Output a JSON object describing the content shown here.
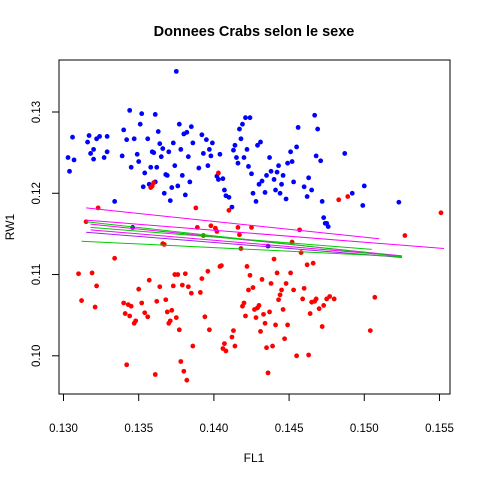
{
  "chart_data": {
    "type": "scatter",
    "title": "Donnees Crabs selon le sexe",
    "xlabel": "FL1",
    "ylabel": "RW1",
    "xlim": [
      0.1297,
      0.1557
    ],
    "ylim": [
      0.0953,
      0.1364
    ],
    "xticks": [
      0.13,
      0.135,
      0.14,
      0.145,
      0.15,
      0.155
    ],
    "xtick_labels": [
      "0.130",
      "0.135",
      "0.140",
      "0.145",
      "0.150",
      "0.155"
    ],
    "yticks": [
      0.1,
      0.11,
      0.12,
      0.13
    ],
    "ytick_labels": [
      "0.10",
      "0.11",
      "0.12",
      "0.13"
    ],
    "grid": false,
    "legend": "none",
    "colors": {
      "blue": "#0000ff",
      "red": "#ff0000",
      "green": "#00cc00",
      "magenta": "#ff00ff",
      "purple": "#a020f0"
    },
    "series": [
      {
        "color": "#0000ff",
        "points": [
          [
            0.1303,
            0.1244
          ],
          [
            0.1304,
            0.1227
          ],
          [
            0.1306,
            0.1269
          ],
          [
            0.1307,
            0.1241
          ],
          [
            0.1316,
            0.1263
          ],
          [
            0.1317,
            0.1271
          ],
          [
            0.1318,
            0.1249
          ],
          [
            0.132,
            0.1242
          ],
          [
            0.132,
            0.1254
          ],
          [
            0.1322,
            0.1267
          ],
          [
            0.1324,
            0.127
          ],
          [
            0.1327,
            0.1244
          ],
          [
            0.1329,
            0.127
          ],
          [
            0.1329,
            0.1251
          ],
          [
            0.1334,
            0.119
          ],
          [
            0.1339,
            0.1246
          ],
          [
            0.134,
            0.1278
          ],
          [
            0.1342,
            0.1266
          ],
          [
            0.1344,
            0.1302
          ],
          [
            0.1345,
            0.1232
          ],
          [
            0.1346,
            0.1158
          ],
          [
            0.1347,
            0.1267
          ],
          [
            0.1349,
            0.1248
          ],
          [
            0.135,
            0.1239
          ],
          [
            0.1351,
            0.1285
          ],
          [
            0.1352,
            0.1298
          ],
          [
            0.1353,
            0.1208
          ],
          [
            0.1354,
            0.1225
          ],
          [
            0.1356,
            0.1267
          ],
          [
            0.1357,
            0.1211
          ],
          [
            0.1358,
            0.1232
          ],
          [
            0.1359,
            0.1251
          ],
          [
            0.136,
            0.125
          ],
          [
            0.1361,
            0.1214
          ],
          [
            0.1361,
            0.1297
          ],
          [
            0.1362,
            0.1232
          ],
          [
            0.1363,
            0.1276
          ],
          [
            0.1364,
            0.1261
          ],
          [
            0.1365,
            0.1245
          ],
          [
            0.1366,
            0.1255
          ],
          [
            0.1367,
            0.12
          ],
          [
            0.1368,
            0.1223
          ],
          [
            0.1369,
            0.1222
          ],
          [
            0.137,
            0.1251
          ],
          [
            0.1371,
            0.1191
          ],
          [
            0.1372,
            0.1207
          ],
          [
            0.1373,
            0.1262
          ],
          [
            0.1374,
            0.1234
          ],
          [
            0.1375,
            0.135
          ],
          [
            0.1376,
            0.1209
          ],
          [
            0.1377,
            0.1285
          ],
          [
            0.1378,
            0.1254
          ],
          [
            0.1379,
            0.1222
          ],
          [
            0.138,
            0.1273
          ],
          [
            0.1381,
            0.1198
          ],
          [
            0.1382,
            0.1275
          ],
          [
            0.1383,
            0.1245
          ],
          [
            0.1384,
            0.1214
          ],
          [
            0.1385,
            0.1282
          ],
          [
            0.1386,
            0.1262
          ],
          [
            0.139,
            0.1231
          ],
          [
            0.1392,
            0.1272
          ],
          [
            0.1393,
            0.1249
          ],
          [
            0.1395,
            0.1266
          ],
          [
            0.1396,
            0.1234
          ],
          [
            0.1397,
            0.1254
          ],
          [
            0.1398,
            0.1246
          ],
          [
            0.1399,
            0.1262
          ],
          [
            0.1402,
            0.1221
          ],
          [
            0.1403,
            0.1217
          ],
          [
            0.1404,
            0.1248
          ],
          [
            0.1406,
            0.1218
          ],
          [
            0.1407,
            0.1204
          ],
          [
            0.1408,
            0.1197
          ],
          [
            0.141,
            0.1195
          ],
          [
            0.1412,
            0.1183
          ],
          [
            0.1413,
            0.1253
          ],
          [
            0.1414,
            0.1259
          ],
          [
            0.1415,
            0.1244
          ],
          [
            0.1416,
            0.1237
          ],
          [
            0.1417,
            0.1279
          ],
          [
            0.1418,
            0.1267
          ],
          [
            0.1419,
            0.1285
          ],
          [
            0.142,
            0.1244
          ],
          [
            0.1421,
            0.1293
          ],
          [
            0.1422,
            0.1254
          ],
          [
            0.1423,
            0.1233
          ],
          [
            0.1424,
            0.1293
          ],
          [
            0.1425,
            0.1224
          ],
          [
            0.1426,
            0.12
          ],
          [
            0.1428,
            0.119
          ],
          [
            0.1429,
            0.1259
          ],
          [
            0.143,
            0.1211
          ],
          [
            0.1431,
            0.1263
          ],
          [
            0.1432,
            0.1215
          ],
          [
            0.1434,
            0.1201
          ],
          [
            0.1435,
            0.1222
          ],
          [
            0.1436,
            0.1135
          ],
          [
            0.1437,
            0.1244
          ],
          [
            0.1438,
            0.1227
          ],
          [
            0.144,
            0.1217
          ],
          [
            0.1441,
            0.1204
          ],
          [
            0.1442,
            0.1226
          ],
          [
            0.1443,
            0.1234
          ],
          [
            0.1444,
            0.12
          ],
          [
            0.1445,
            0.1211
          ],
          [
            0.1446,
            0.1222
          ],
          [
            0.1448,
            0.1193
          ],
          [
            0.1449,
            0.1237
          ],
          [
            0.1451,
            0.1251
          ],
          [
            0.1452,
            0.1239
          ],
          [
            0.1453,
            0.1214
          ],
          [
            0.1455,
            0.1257
          ],
          [
            0.1456,
            0.1281
          ],
          [
            0.146,
            0.1208
          ],
          [
            0.1462,
            0.1196
          ],
          [
            0.1463,
            0.1219
          ],
          [
            0.1465,
            0.1204
          ],
          [
            0.1467,
            0.1296
          ],
          [
            0.1468,
            0.1246
          ],
          [
            0.1469,
            0.1279
          ],
          [
            0.1471,
            0.124
          ],
          [
            0.1472,
            0.119
          ],
          [
            0.1473,
            0.117
          ],
          [
            0.1474,
            0.1163
          ],
          [
            0.1475,
            0.1163
          ],
          [
            0.1476,
            0.1159
          ],
          [
            0.1487,
            0.1249
          ],
          [
            0.1492,
            0.12
          ],
          [
            0.1499,
            0.1185
          ],
          [
            0.15,
            0.1209
          ],
          [
            0.1523,
            0.1189
          ]
        ]
      },
      {
        "color": "#ff0000",
        "points": [
          [
            0.131,
            0.1101
          ],
          [
            0.1312,
            0.1068
          ],
          [
            0.1315,
            0.1165
          ],
          [
            0.1319,
            0.1102
          ],
          [
            0.1321,
            0.106
          ],
          [
            0.1322,
            0.1086
          ],
          [
            0.1323,
            0.1182
          ],
          [
            0.1334,
            0.112
          ],
          [
            0.134,
            0.1065
          ],
          [
            0.1341,
            0.1052
          ],
          [
            0.1342,
            0.0989
          ],
          [
            0.1343,
            0.1063
          ],
          [
            0.1344,
            0.1049
          ],
          [
            0.1345,
            0.1061
          ],
          [
            0.1347,
            0.104
          ],
          [
            0.1348,
            0.1043
          ],
          [
            0.135,
            0.1082
          ],
          [
            0.1352,
            0.1065
          ],
          [
            0.1354,
            0.1053
          ],
          [
            0.1356,
            0.1048
          ],
          [
            0.1357,
            0.1093
          ],
          [
            0.1358,
            0.1207
          ],
          [
            0.1359,
            0.1209
          ],
          [
            0.136,
            0.1213
          ],
          [
            0.1361,
            0.0977
          ],
          [
            0.1362,
            0.1067
          ],
          [
            0.1364,
            0.1085
          ],
          [
            0.1366,
            0.1138
          ],
          [
            0.1367,
            0.1137
          ],
          [
            0.1368,
            0.1069
          ],
          [
            0.1369,
            0.1054
          ],
          [
            0.137,
            0.104
          ],
          [
            0.1371,
            0.1043
          ],
          [
            0.1372,
            0.1056
          ],
          [
            0.1373,
            0.1086
          ],
          [
            0.1374,
            0.11
          ],
          [
            0.1375,
            0.1047
          ],
          [
            0.1376,
            0.11
          ],
          [
            0.1377,
            0.1032
          ],
          [
            0.1378,
            0.0993
          ],
          [
            0.1379,
            0.1087
          ],
          [
            0.138,
            0.0981
          ],
          [
            0.1381,
            0.1101
          ],
          [
            0.1382,
            0.097
          ],
          [
            0.1383,
            0.1085
          ],
          [
            0.1385,
            0.1077
          ],
          [
            0.1386,
            0.1012
          ],
          [
            0.1388,
            0.1182
          ],
          [
            0.1389,
            0.1158
          ],
          [
            0.1391,
            0.1078
          ],
          [
            0.1392,
            0.1095
          ],
          [
            0.1393,
            0.1148
          ],
          [
            0.1394,
            0.1048
          ],
          [
            0.1396,
            0.1104
          ],
          [
            0.1397,
            0.1032
          ],
          [
            0.1398,
            0.116
          ],
          [
            0.1401,
            0.1157
          ],
          [
            0.1402,
            0.1153
          ],
          [
            0.1403,
            0.1225
          ],
          [
            0.1404,
            0.111
          ],
          [
            0.1405,
            0.1111
          ],
          [
            0.1406,
            0.1009
          ],
          [
            0.1407,
            0.1015
          ],
          [
            0.1408,
            0.1006
          ],
          [
            0.141,
            0.1179
          ],
          [
            0.1412,
            0.1023
          ],
          [
            0.1413,
            0.1031
          ],
          [
            0.1414,
            0.1012
          ],
          [
            0.1416,
            0.1158
          ],
          [
            0.1417,
            0.1149
          ],
          [
            0.1418,
            0.1132
          ],
          [
            0.1419,
            0.1061
          ],
          [
            0.142,
            0.1065
          ],
          [
            0.1421,
            0.1049
          ],
          [
            0.1422,
            0.111
          ],
          [
            0.1423,
            0.1081
          ],
          [
            0.1424,
            0.1099
          ],
          [
            0.1425,
            0.1158
          ],
          [
            0.1426,
            0.1084
          ],
          [
            0.1427,
            0.1057
          ],
          [
            0.1428,
            0.1047
          ],
          [
            0.1429,
            0.1059
          ],
          [
            0.143,
            0.1062
          ],
          [
            0.1431,
            0.103
          ],
          [
            0.1432,
            0.1094
          ],
          [
            0.1433,
            0.1051
          ],
          [
            0.1434,
            0.104
          ],
          [
            0.1435,
            0.101
          ],
          [
            0.1436,
            0.0979
          ],
          [
            0.1437,
            0.1054
          ],
          [
            0.1438,
            0.1089
          ],
          [
            0.1439,
            0.1012
          ],
          [
            0.144,
            0.1119
          ],
          [
            0.1441,
            0.1038
          ],
          [
            0.1442,
            0.1102
          ],
          [
            0.1443,
            0.1069
          ],
          [
            0.1444,
            0.1075
          ],
          [
            0.1445,
            0.1081
          ],
          [
            0.1446,
            0.1057
          ],
          [
            0.1447,
            0.1021
          ],
          [
            0.1448,
            0.1089
          ],
          [
            0.1449,
            0.1038
          ],
          [
            0.1451,
            0.1102
          ],
          [
            0.1452,
            0.114
          ],
          [
            0.1453,
            0.1081
          ],
          [
            0.1455,
            0.1
          ],
          [
            0.1457,
            0.1155
          ],
          [
            0.1458,
            0.1127
          ],
          [
            0.1459,
            0.107
          ],
          [
            0.146,
            0.1083
          ],
          [
            0.1462,
            0.1112
          ],
          [
            0.1463,
            0.1001
          ],
          [
            0.1464,
            0.1052
          ],
          [
            0.1465,
            0.1066
          ],
          [
            0.1466,
            0.1114
          ],
          [
            0.1467,
            0.1067
          ],
          [
            0.1468,
            0.107
          ],
          [
            0.147,
            0.1058
          ],
          [
            0.1472,
            0.1036
          ],
          [
            0.1473,
            0.1062
          ],
          [
            0.1475,
            0.107
          ],
          [
            0.1477,
            0.1073
          ],
          [
            0.148,
            0.107
          ],
          [
            0.1483,
            0.1192
          ],
          [
            0.1489,
            0.1196
          ],
          [
            0.1504,
            0.1031
          ],
          [
            0.1507,
            0.1072
          ],
          [
            0.1527,
            0.1148
          ],
          [
            0.1551,
            0.1176
          ]
        ]
      }
    ],
    "lines": [
      {
        "color": "#ff00ff",
        "x": [
          0.1315,
          0.151
        ],
        "y": [
          0.1182,
          0.1144
        ]
      },
      {
        "color": "#ff00ff",
        "x": [
          0.1315,
          0.1553
        ],
        "y": [
          0.1167,
          0.1132
        ]
      },
      {
        "color": "#ff00ff",
        "x": [
          0.1318,
          0.151
        ],
        "y": [
          0.1155,
          0.1125
        ]
      },
      {
        "color": "#ff00ff",
        "x": [
          0.1318,
          0.1525
        ],
        "y": [
          0.1162,
          0.1123
        ]
      },
      {
        "color": "#a020f0",
        "x": [
          0.1315,
          0.1525
        ],
        "y": [
          0.1152,
          0.1121
        ]
      },
      {
        "color": "#00cc00",
        "x": [
          0.1315,
          0.1525
        ],
        "y": [
          0.1165,
          0.1122
        ]
      },
      {
        "color": "#00cc00",
        "x": [
          0.1318,
          0.1505
        ],
        "y": [
          0.1158,
          0.1131
        ]
      },
      {
        "color": "#00cc00",
        "x": [
          0.1312,
          0.1525
        ],
        "y": [
          0.1141,
          0.1122
        ]
      }
    ]
  }
}
